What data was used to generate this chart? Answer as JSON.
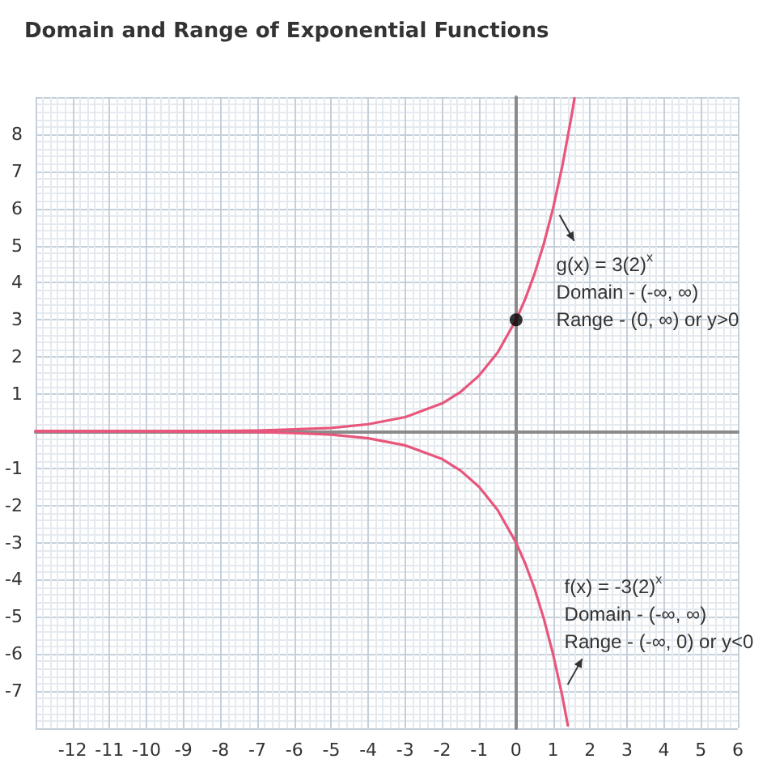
{
  "chart_data": {
    "type": "line",
    "title": "Domain and Range of Exponential Functions",
    "xlim": [
      -13,
      6
    ],
    "xticks": [
      -12,
      -11,
      -10,
      -9,
      -8,
      -7,
      -6,
      -5,
      -4,
      -3,
      -2,
      -1,
      0,
      1,
      2,
      3,
      4,
      5,
      6
    ],
    "ylim": [
      -8,
      9
    ],
    "yticks": [
      -7,
      -6,
      -5,
      -4,
      -3,
      -2,
      -1,
      1,
      2,
      3,
      4,
      5,
      6,
      7,
      8
    ],
    "grid": true,
    "marker": "none",
    "line_style": "solid",
    "series": [
      {
        "color": "#e8567c",
        "x": [
          -13,
          -12,
          -11,
          -10,
          -9,
          -8,
          -7,
          -6,
          -5,
          -4,
          -3,
          -2,
          -1.5,
          -1,
          -0.5,
          0,
          0.25,
          0.5,
          0.75,
          1,
          1.25,
          1.5,
          1.58
        ],
        "values": [
          0,
          0,
          0,
          0,
          0.01,
          0.01,
          0.02,
          0.05,
          0.09,
          0.19,
          0.38,
          0.75,
          1.06,
          1.5,
          2.12,
          3,
          3.57,
          4.24,
          5.05,
          6,
          7.14,
          8.49,
          8.97
        ]
      },
      {
        "color": "#e8567c",
        "x": [
          -13,
          -12,
          -11,
          -10,
          -9,
          -8,
          -7,
          -6,
          -5,
          -4,
          -3,
          -2,
          -1.5,
          -1,
          -0.5,
          0,
          0.25,
          0.5,
          0.75,
          1,
          1.25,
          1.4
        ],
        "values": [
          0,
          0,
          0,
          0,
          -0.01,
          -0.01,
          -0.02,
          -0.05,
          -0.09,
          -0.19,
          -0.38,
          -0.75,
          -1.06,
          -1.5,
          -2.12,
          -3,
          -3.57,
          -4.24,
          -5.05,
          -6,
          -7.13,
          -7.92
        ]
      },
      {
        "type": "scatter",
        "marker": "circle",
        "color": "#000000",
        "x": [
          0
        ],
        "values": [
          3
        ]
      }
    ],
    "annotations": [
      {
        "text": "g(x) = 3(2)$^{x}$",
        "x": 1,
        "y": 6
      },
      "Domain - (-∞, ∞)",
      "Range - (0, ∞) or y>0",
      "f(x) = -3(2)$^{x}$",
      "Domain - (-∞, ∞)",
      {
        "text": "Range - (-∞, 0) or y<0",
        "x": 1.22,
        "y": -7
      }
    ]
  }
}
